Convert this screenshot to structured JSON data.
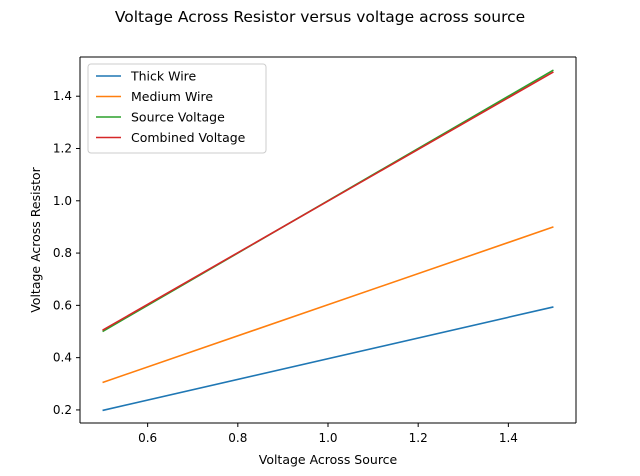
{
  "chart_data": {
    "type": "line",
    "title": "Voltage Across Resistor versus voltage across source",
    "xlabel": "Voltage Across Source",
    "ylabel": "Voltage Across Resistor",
    "xlim": [
      0.45,
      1.55
    ],
    "ylim": [
      0.15,
      1.55
    ],
    "x_ticks": [
      0.6,
      0.8,
      1.0,
      1.2,
      1.4
    ],
    "x_tick_labels": [
      "0.6",
      "0.8",
      "1.0",
      "1.2",
      "1.4"
    ],
    "y_ticks": [
      0.2,
      0.4,
      0.6,
      0.8,
      1.0,
      1.2,
      1.4
    ],
    "y_tick_labels": [
      "0.2",
      "0.4",
      "0.6",
      "0.8",
      "1.0",
      "1.2",
      "1.4"
    ],
    "grid": false,
    "legend_position": "top-left",
    "x": [
      0.5,
      1.5
    ],
    "series": [
      {
        "name": "Thick Wire",
        "values": [
          0.198,
          0.594
        ],
        "color": "#1f77b4"
      },
      {
        "name": "Medium Wire",
        "values": [
          0.305,
          0.9
        ],
        "color": "#ff7f0e"
      },
      {
        "name": "Source Voltage",
        "values": [
          0.5,
          1.5
        ],
        "color": "#2ca02c"
      },
      {
        "name": "Combined Voltage",
        "values": [
          0.505,
          1.493
        ],
        "color": "#d62728"
      }
    ]
  }
}
